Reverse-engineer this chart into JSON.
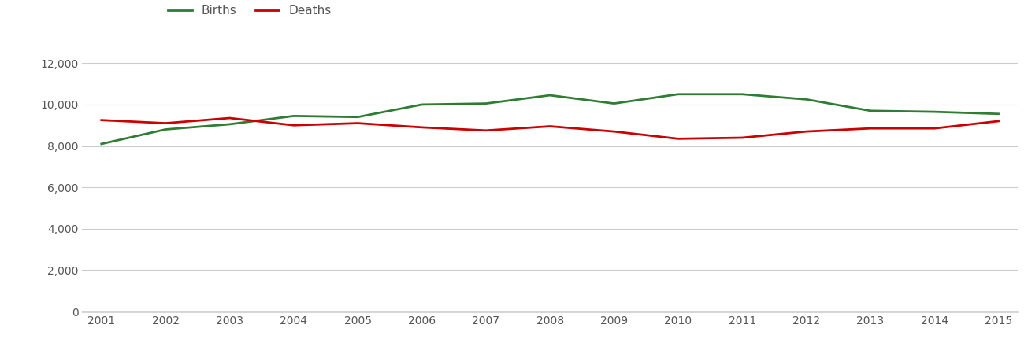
{
  "years": [
    2001,
    2002,
    2003,
    2004,
    2005,
    2006,
    2007,
    2008,
    2009,
    2010,
    2011,
    2012,
    2013,
    2014,
    2015
  ],
  "births": [
    8100,
    8800,
    9050,
    9450,
    9400,
    10000,
    10050,
    10450,
    10050,
    10500,
    10500,
    10250,
    9700,
    9650,
    9550
  ],
  "deaths": [
    9250,
    9100,
    9350,
    9000,
    9100,
    8900,
    8750,
    8950,
    8700,
    8350,
    8400,
    8700,
    8850,
    8850,
    9200
  ],
  "births_color": "#2e7d32",
  "deaths_color": "#cc0000",
  "background_color": "#ffffff",
  "grid_color": "#cccccc",
  "line_width": 2.0,
  "ylim": [
    0,
    13000
  ],
  "yticks": [
    0,
    2000,
    4000,
    6000,
    8000,
    10000,
    12000
  ],
  "legend_labels": [
    "Births",
    "Deaths"
  ],
  "figsize": [
    13.05,
    4.5
  ],
  "dpi": 100,
  "tick_label_color": "#555555",
  "bottom_spine_color": "#333333"
}
